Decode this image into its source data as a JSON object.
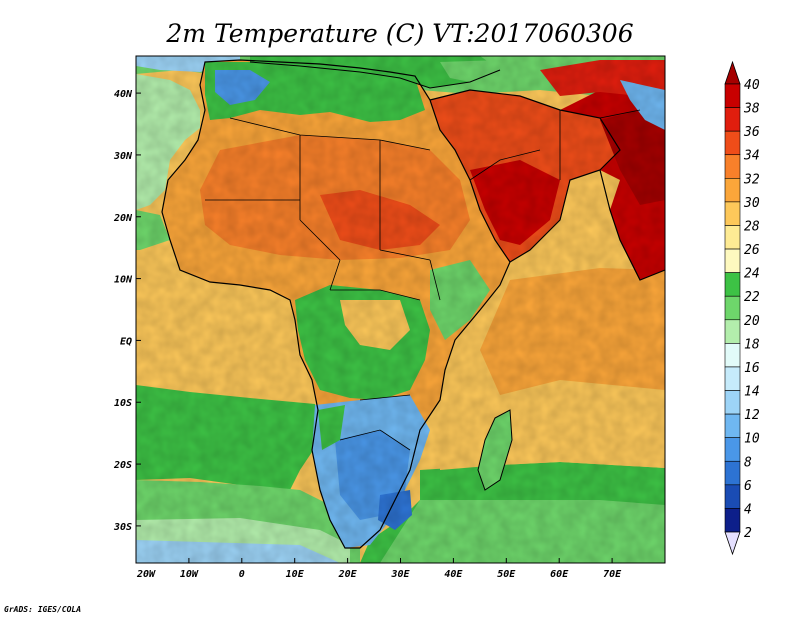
{
  "title": "2m Temperature (C) VT:2017060306",
  "credit": "GrADS: IGES/COLA",
  "map": {
    "lon_range": [
      -20,
      80
    ],
    "lat_range": [
      -36,
      46
    ],
    "lon_ticks": [
      {
        "value": -20,
        "label": "20W"
      },
      {
        "value": -10,
        "label": "10W"
      },
      {
        "value": 0,
        "label": "0"
      },
      {
        "value": 10,
        "label": "10E"
      },
      {
        "value": 20,
        "label": "20E"
      },
      {
        "value": 30,
        "label": "30E"
      },
      {
        "value": 40,
        "label": "40E"
      },
      {
        "value": 50,
        "label": "50E"
      },
      {
        "value": 60,
        "label": "60E"
      },
      {
        "value": 70,
        "label": "70E"
      }
    ],
    "lat_ticks": [
      {
        "value": 40,
        "label": "40N"
      },
      {
        "value": 30,
        "label": "30N"
      },
      {
        "value": 20,
        "label": "20N"
      },
      {
        "value": 10,
        "label": "10N"
      },
      {
        "value": 0,
        "label": "EQ"
      },
      {
        "value": -10,
        "label": "10S"
      },
      {
        "value": -20,
        "label": "20S"
      },
      {
        "value": -30,
        "label": "30S"
      }
    ]
  },
  "colorbar": {
    "labels": [
      "40",
      "38",
      "36",
      "34",
      "32",
      "30",
      "28",
      "26",
      "24",
      "22",
      "20",
      "18",
      "16",
      "14",
      "12",
      "10",
      "8",
      "6",
      "4",
      "2"
    ],
    "colors": {
      "above_40": "#a50000",
      "b38_40": "#c80000",
      "b36_38": "#e01e0e",
      "b34_36": "#ef4d19",
      "b32_34": "#f8802a",
      "b30_32": "#fba63a",
      "b28_30": "#fdc85a",
      "b26_28": "#feeb94",
      "b24_26": "#fef9bf",
      "b22_24": "#3dc245",
      "b20_22": "#6ed66b",
      "b18_20": "#b3eeac",
      "b16_18": "#e2fbf9",
      "b14_16": "#c6ebfb",
      "b12_14": "#9dd4f7",
      "b10_12": "#6fb7f1",
      "b8_10": "#4a97e8",
      "b6_8": "#2d73d3",
      "b4_6": "#1a4cb4",
      "b2_4": "#0d1f8a",
      "below_2": "#e5e0ff"
    }
  }
}
